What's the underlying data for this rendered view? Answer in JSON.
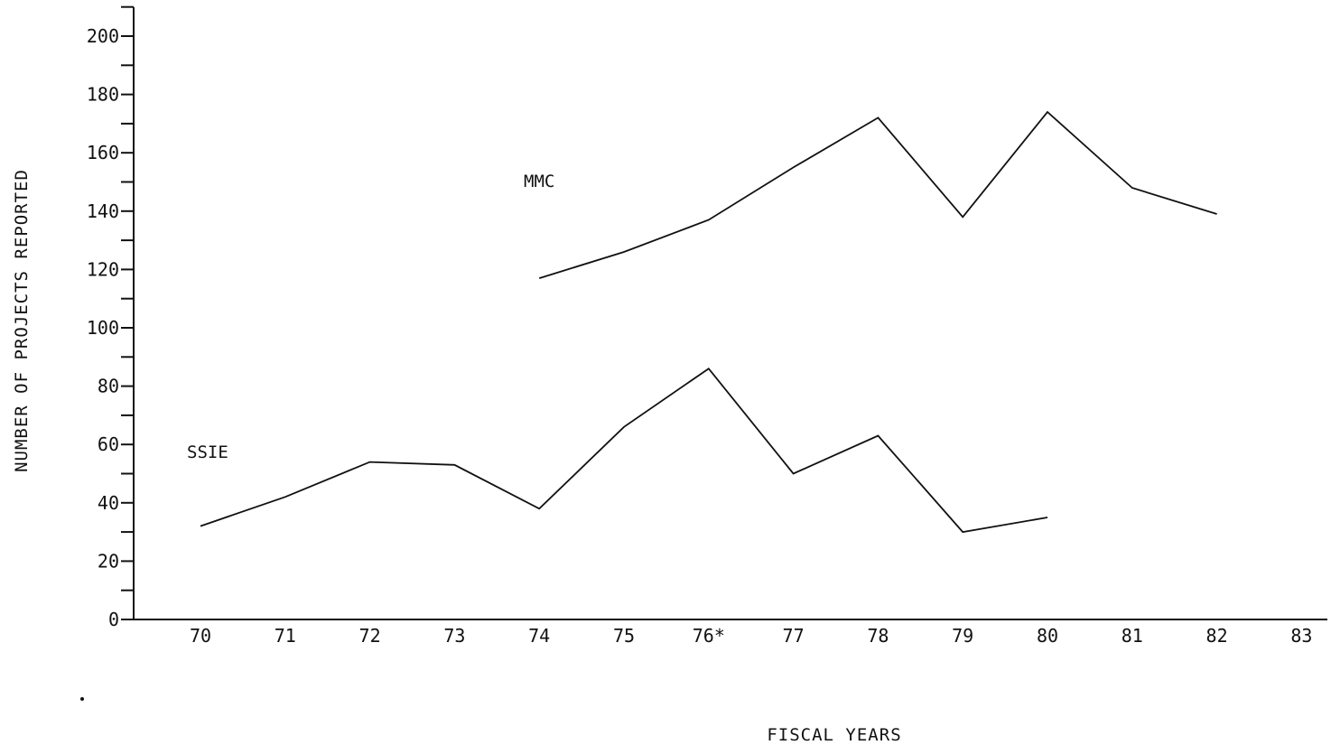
{
  "chart_data": {
    "type": "line",
    "title": "",
    "xlabel": "FISCAL YEARS",
    "ylabel": "NUMBER OF PROJECTS REPORTED",
    "x_categories": [
      "70",
      "71",
      "72",
      "73",
      "74",
      "75",
      "76*",
      "77",
      "78",
      "79",
      "80",
      "81",
      "82",
      "83"
    ],
    "y_ticks": [
      0,
      20,
      40,
      60,
      80,
      100,
      120,
      140,
      160,
      180,
      200
    ],
    "y_minor_step": 10,
    "ylim": [
      0,
      210
    ],
    "grid": false,
    "legend": "none",
    "series": [
      {
        "name": "MMC",
        "x": [
          "74",
          "75",
          "76*",
          "77",
          "78",
          "79",
          "80",
          "81",
          "82"
        ],
        "values": [
          117,
          126,
          137,
          155,
          172,
          138,
          174,
          148,
          139
        ]
      },
      {
        "name": "SSIE",
        "x": [
          "70",
          "71",
          "72",
          "73",
          "74",
          "75",
          "76*",
          "77",
          "78",
          "79",
          "80"
        ],
        "values": [
          32,
          42,
          54,
          53,
          38,
          66,
          86,
          50,
          63,
          30,
          35
        ]
      }
    ]
  }
}
